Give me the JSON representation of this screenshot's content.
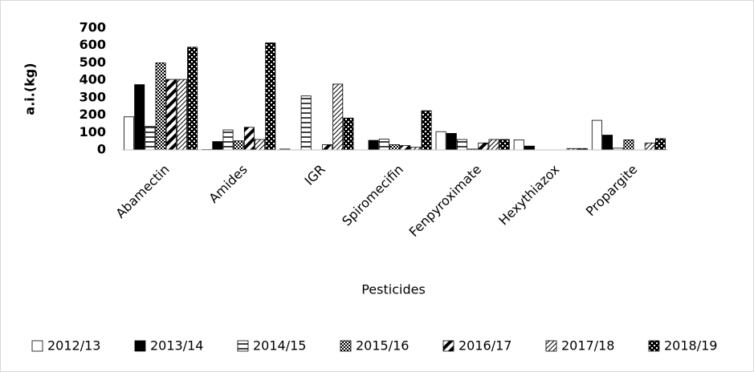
{
  "chart_data": {
    "type": "bar",
    "y_label": "a.i.(kg)",
    "x_label": "Pesticides",
    "categories": [
      "Abamectin",
      "Amides",
      "IGR",
      "Spiromecifin",
      "Fenpyroximate",
      "Hexythiazox",
      "Propargite"
    ],
    "series": [
      {
        "name": "2012/13",
        "color": "#000000",
        "pattern": "none",
        "values": [
          190,
          2,
          5,
          0,
          105,
          58,
          170
        ]
      },
      {
        "name": "2013/14",
        "color": "#000000",
        "pattern": "solid",
        "values": [
          375,
          48,
          0,
          55,
          95,
          22,
          85
        ]
      },
      {
        "name": "2014/15",
        "color": "#000000",
        "pattern": "horizontal",
        "values": [
          135,
          115,
          310,
          62,
          60,
          0,
          10
        ]
      },
      {
        "name": "2015/16",
        "color": "#000000",
        "pattern": "checker",
        "values": [
          500,
          52,
          0,
          30,
          5,
          0,
          58
        ]
      },
      {
        "name": "2016/17",
        "color": "#000000",
        "pattern": "diagonal-thick",
        "values": [
          405,
          130,
          30,
          25,
          40,
          0,
          0
        ]
      },
      {
        "name": "2017/18",
        "color": "#000000",
        "pattern": "diagonal-thin",
        "values": [
          405,
          60,
          378,
          15,
          60,
          8,
          40
        ]
      },
      {
        "name": "2018/19",
        "color": "#000000",
        "pattern": "dots",
        "values": [
          590,
          615,
          183,
          225,
          60,
          8,
          65
        ]
      }
    ],
    "ylim": [
      0,
      700
    ],
    "yticks": [
      0,
      100,
      200,
      300,
      400,
      500,
      600,
      700
    ],
    "grid": false,
    "legend": "bottom"
  }
}
